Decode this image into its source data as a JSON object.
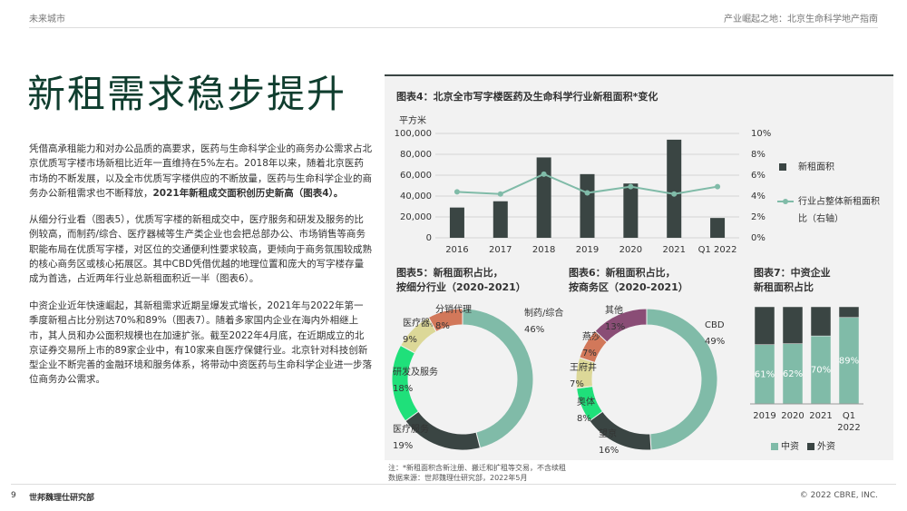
{
  "header": {
    "left": "未来城市",
    "right": "产业崛起之地：北京生命科学地产指南"
  },
  "title": "新租需求稳步提升",
  "paragraphs": [
    {
      "text": "凭借高承租能力和对办公品质的高要求，医药与生命科学企业的商务办公需求占北京优质写字楼市场新租比近年一直维持在5%左右。2018年以来，随着北京医药市场的不断发展，以及全市优质写字楼供应的不断放量，医药与生命科学企业的商务办公新租需求也不断释放，",
      "bold": "2021年新租成交面积创历史新高（图表4）。"
    },
    {
      "text": "从细分行业看（图表5），优质写字楼的新租成交中，医疗服务和研发及服务的比例较高，而制药/综合、医疗器械等生产类企业也会把总部办公、市场销售等商务职能布局在优质写字楼，对区位的交通便利性要求较高，更倾向于商务氛围较成熟的核心商务区或核心拓展区。其中CBD凭借优越的地理位置和庞大的写字楼存量成为首选，占近两年行业总新租面积近一半（图表6）。"
    },
    {
      "text": "中资企业近年快速崛起，其新租需求近期呈爆发式增长，2021年与2022年第一季度新租占比分别达70%和89%（图表7）。随着多家国内企业在海内外相继上市，其人员和办公面积规模也在加速扩张。截至2022年4月底，在近期成立的北京证券交易所上市的89家企业中，有10家来自医疗保健行业。北京针对科技创新型企业不断完善的金融环境和服务体系，将带动中资医药与生命科学企业进一步落位商务办公需求。"
    }
  ],
  "chart_data": [
    {
      "type": "bar",
      "title": "图表4：北京全市写字楼医药及生命科学行业新租面积*变化",
      "y_label": "平方米",
      "categories": [
        "2016",
        "2017",
        "2018",
        "2019",
        "2020",
        "2021",
        "Q1 2022"
      ],
      "series": [
        {
          "name": "新租面积",
          "color": "#3a4543",
          "values": [
            29000,
            35000,
            77000,
            61000,
            52000,
            94000,
            19000
          ]
        },
        {
          "name": "行业占整体新租面积比（右轴）",
          "type": "line",
          "axis": "y2",
          "color": "#80bba8",
          "values": [
            4.4,
            4.2,
            6.1,
            4.3,
            4.9,
            4.2,
            4.9
          ]
        }
      ],
      "ylim": [
        0,
        100000
      ],
      "yticks": [
        0,
        {
          "value": 20000,
          "label": "20,000"
        },
        {
          "value": 40000,
          "label": "40,000"
        },
        {
          "value": 60000,
          "label": "60,000"
        },
        {
          "value": 80000,
          "label": "80,000"
        },
        {
          "value": 100000,
          "label": "100,000"
        }
      ],
      "y2lim": [
        0,
        10
      ],
      "y2ticks": [
        {
          "value": 0,
          "label": "0%"
        },
        {
          "value": 2,
          "label": "2%"
        },
        {
          "value": 4,
          "label": "4%"
        },
        {
          "value": 6,
          "label": "6%"
        },
        {
          "value": 8,
          "label": "8%"
        },
        {
          "value": 10,
          "label": "10%"
        }
      ],
      "grid": true
    },
    {
      "type": "donut",
      "title": [
        "图表5：新租面积占比，",
        "按细分行业（2020-2021）"
      ],
      "categories": [
        "制药/综合",
        "医疗服务",
        "研发及服务",
        "医疗器械",
        "分销代理"
      ],
      "values": [
        46,
        19,
        18,
        9,
        8
      ],
      "value_labels": [
        "46%",
        "19%",
        "18%",
        "9%",
        "8%"
      ],
      "colors": [
        "#80bba8",
        "#3a4543",
        "#1fe07a",
        "#dcd898",
        "#d2785a"
      ]
    },
    {
      "type": "donut",
      "title": [
        "图表6：新租面积占比，",
        "按商务区（2020-2021）"
      ],
      "categories": [
        "CBD",
        "望京",
        "奥体",
        "王府井",
        "燕莎",
        "其他"
      ],
      "values": [
        49,
        16,
        8,
        7,
        7,
        13
      ],
      "value_labels": [
        "49%",
        "16%",
        "8%",
        "7%",
        "7%",
        "13%"
      ],
      "colors": [
        "#80bba8",
        "#3a4543",
        "#1fe07a",
        "#dcd898",
        "#d2785a",
        "#8a4d76"
      ]
    },
    {
      "type": "stacked_bar",
      "title": [
        "图表7：中资企业",
        "新租面积占比"
      ],
      "categories": [
        "2019",
        "2020",
        "2021",
        "Q1 2022"
      ],
      "ylim": [
        0,
        100
      ],
      "series": [
        {
          "name": "中资",
          "color": "#80bba8",
          "values": [
            61,
            62,
            70,
            89
          ],
          "value_labels": [
            "61%",
            "62%",
            "70%",
            "89%"
          ]
        },
        {
          "name": "外资",
          "color": "#3a4543",
          "values": [
            39,
            38,
            30,
            11
          ]
        }
      ]
    }
  ],
  "notes": [
    "注：*新租面积含新注册、搬迁和扩租等交易，不含续租",
    "数据来源：世邦魏理仕研究部，2022年5月"
  ],
  "footer": {
    "page": "9",
    "left": "世邦魏理仕研究部",
    "right": "© 2022 CBRE, INC."
  }
}
